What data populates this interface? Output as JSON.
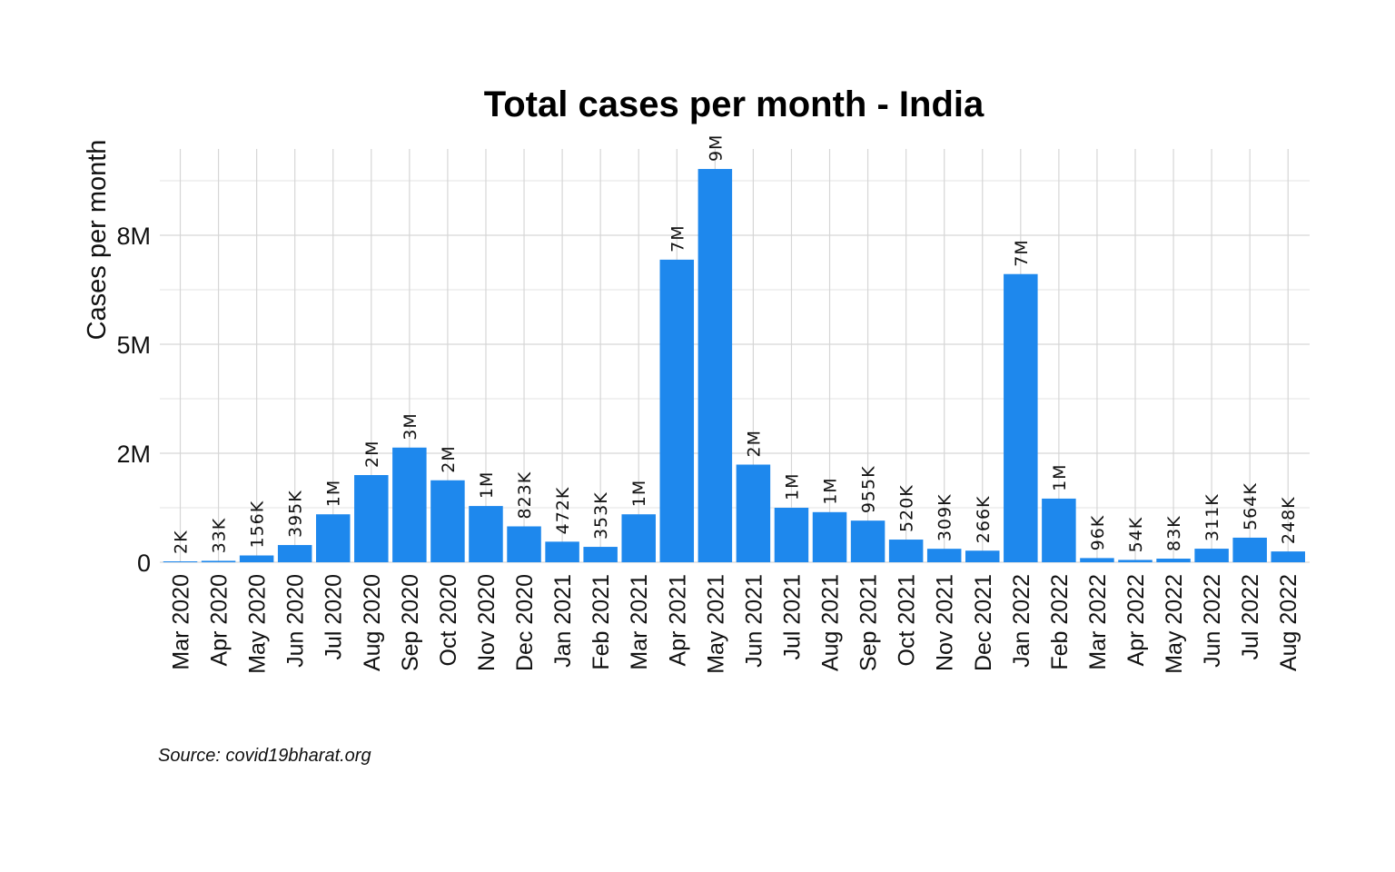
{
  "chart_data": {
    "type": "bar",
    "title": "Total cases per month - India",
    "xlabel": "",
    "ylabel": "Cases per month",
    "caption": "Source: covid19bharat.org",
    "color": "#1e88ed",
    "grid": true,
    "ylim": [
      0,
      9500000
    ],
    "yticks": [
      {
        "value": 0,
        "label": "0"
      },
      {
        "value": 2500000,
        "label": "2M"
      },
      {
        "value": 5000000,
        "label": "5M"
      },
      {
        "value": 7500000,
        "label": "8M"
      }
    ],
    "categories": [
      "Mar 2020",
      "Apr 2020",
      "May 2020",
      "Jun 2020",
      "Jul 2020",
      "Aug 2020",
      "Sep 2020",
      "Oct 2020",
      "Nov 2020",
      "Dec 2020",
      "Jan 2021",
      "Feb 2021",
      "Mar 2021",
      "Apr 2021",
      "May 2021",
      "Jun 2021",
      "Jul 2021",
      "Aug 2021",
      "Sep 2021",
      "Oct 2021",
      "Nov 2021",
      "Dec 2021",
      "Jan 2022",
      "Feb 2022",
      "Mar 2022",
      "Apr 2022",
      "May 2022",
      "Jun 2022",
      "Jul 2022",
      "Aug 2022"
    ],
    "values": [
      2000,
      33000,
      156000,
      395000,
      1100000,
      2000000,
      2630000,
      1880000,
      1290000,
      823000,
      472000,
      353000,
      1100000,
      6940000,
      9020000,
      2240000,
      1250000,
      1150000,
      955000,
      520000,
      309000,
      266000,
      6610000,
      1460000,
      96000,
      54000,
      83000,
      311000,
      564000,
      248000
    ],
    "labels": [
      "2K",
      "33K",
      "156K",
      "395K",
      "1M",
      "2M",
      "3M",
      "2M",
      "1M",
      "823K",
      "472K",
      "353K",
      "1M",
      "7M",
      "9M",
      "2M",
      "1M",
      "1M",
      "955K",
      "520K",
      "309K",
      "266K",
      "7M",
      "1M",
      "96K",
      "54K",
      "83K",
      "311K",
      "564K",
      "248K"
    ]
  }
}
